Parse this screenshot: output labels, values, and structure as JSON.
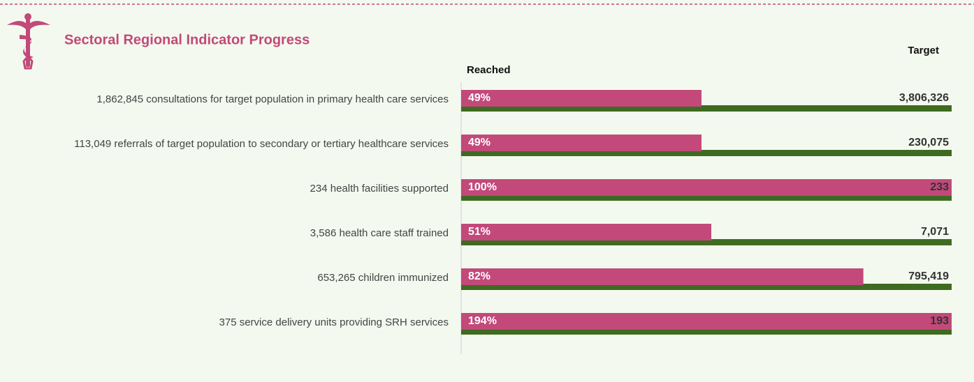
{
  "chart_data": {
    "type": "bar",
    "title": "Sectoral Regional Indicator Progress",
    "categories": [
      "1,862,845 consultations for target population in primary health  care services",
      "113,049 referrals of target population to secondary or tertiary healthcare services",
      "234 health facilities supported",
      "3,586  health care staff trained",
      "653,265 children immunized",
      "375 service delivery units providing SRH services"
    ],
    "xlim": [
      0,
      100
    ],
    "series": [
      {
        "name": "Reached",
        "color": "#c2497a",
        "values": [
          49,
          49,
          100,
          51,
          82,
          194
        ],
        "value_labels": [
          "49%",
          "49%",
          "100%",
          "51%",
          "82%",
          "194%"
        ]
      },
      {
        "name": "Target",
        "color": "#3e6b20",
        "values": [
          3806326,
          230075,
          233,
          7071,
          795419,
          193
        ],
        "value_labels": [
          "3,806,326",
          "230,075",
          "233",
          "7,071",
          "795,419",
          "193"
        ]
      }
    ]
  }
}
